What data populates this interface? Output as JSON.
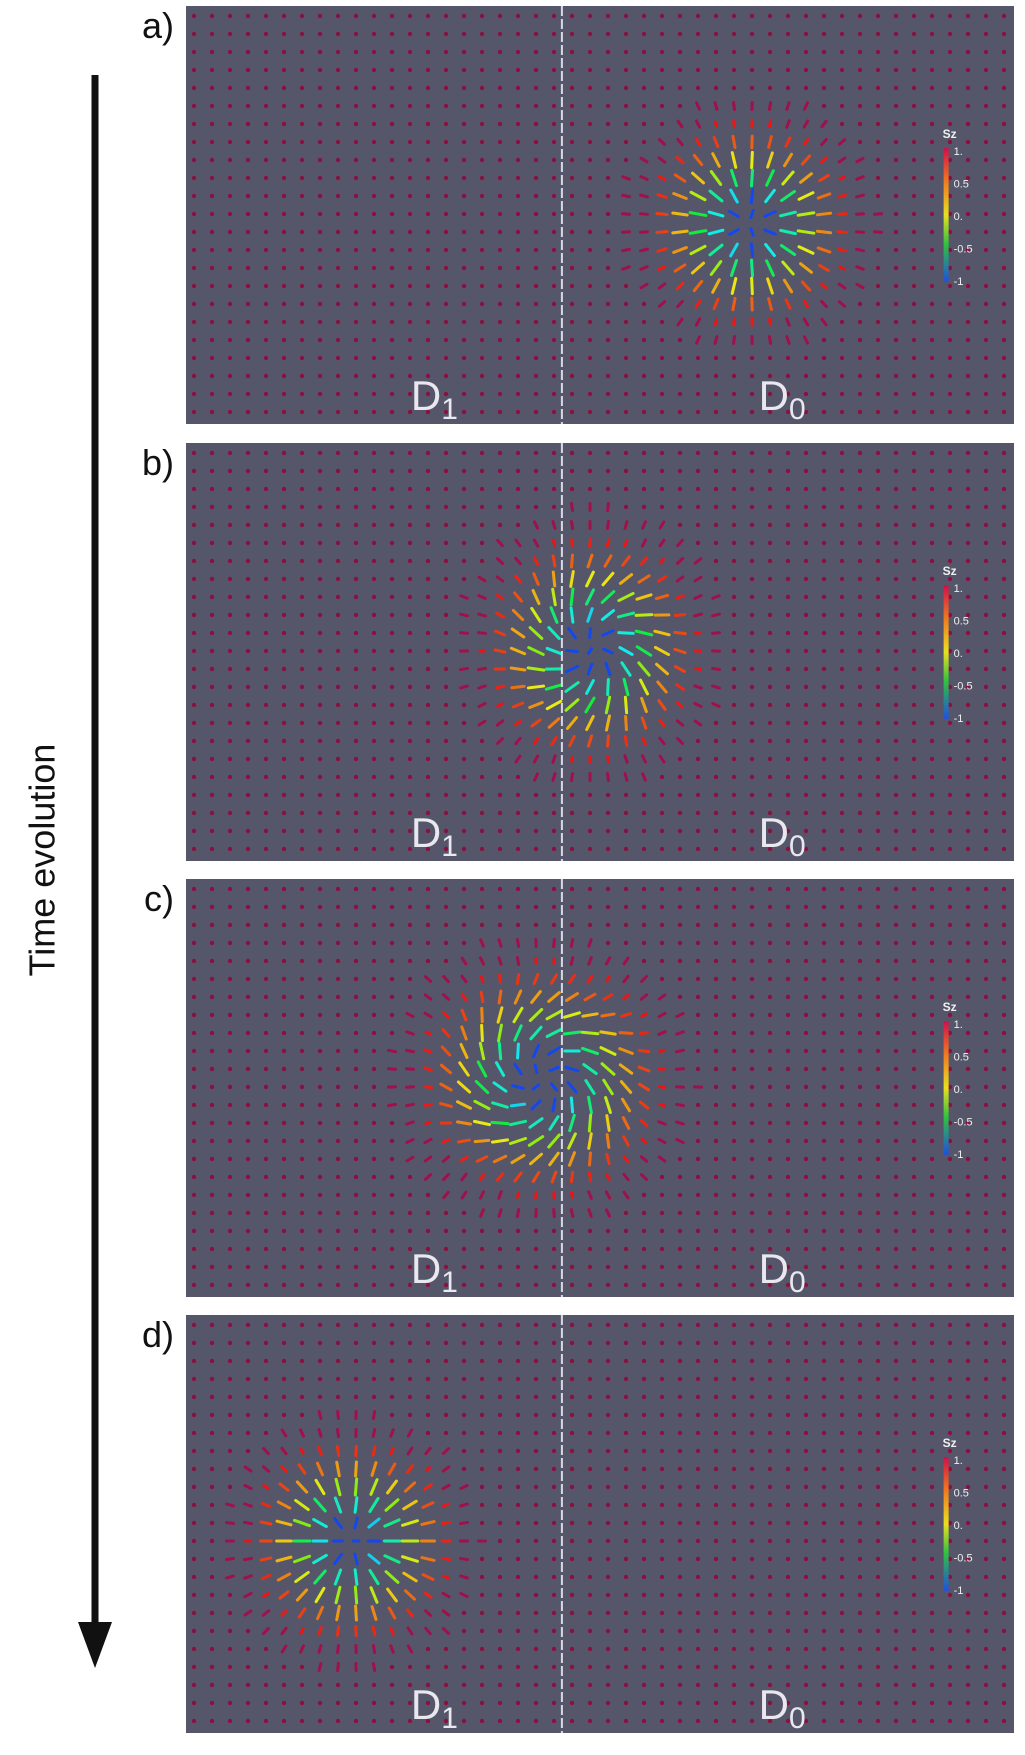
{
  "arrow_label": "Time evolution",
  "panels": [
    {
      "label": "a)",
      "left_region": {
        "base": "D",
        "subscript": "1"
      },
      "right_region": {
        "base": "D",
        "subscript": "0"
      },
      "colorbar": {
        "title": "Sz",
        "ticks": [
          "1.",
          "0.5",
          "0.",
          "-0.5",
          "-1"
        ]
      }
    },
    {
      "label": "b)",
      "left_region": {
        "base": "D",
        "subscript": "1"
      },
      "right_region": {
        "base": "D",
        "subscript": "0"
      },
      "colorbar": {
        "title": "Sz",
        "ticks": [
          "1.",
          "0.5",
          "0.",
          "-0.5",
          "-1"
        ]
      }
    },
    {
      "label": "c)",
      "left_region": {
        "base": "D",
        "subscript": "1"
      },
      "right_region": {
        "base": "D",
        "subscript": "0"
      },
      "colorbar": {
        "title": "Sz",
        "ticks": [
          "1.",
          "0.5",
          "0.",
          "-0.5",
          "-1"
        ]
      }
    },
    {
      "label": "d)",
      "left_region": {
        "base": "D",
        "subscript": "1"
      },
      "right_region": {
        "base": "D",
        "subscript": "0"
      },
      "colorbar": {
        "title": "Sz",
        "ticks": [
          "1.",
          "0.5",
          "0.",
          "-0.5",
          "-1"
        ]
      }
    }
  ]
}
